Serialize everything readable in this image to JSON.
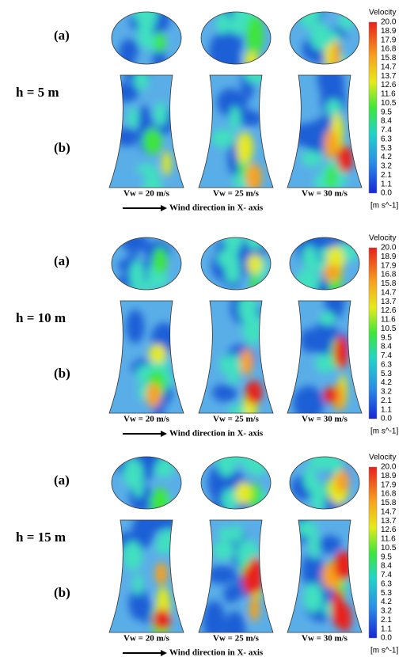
{
  "panels": [
    {
      "height_label": "h = 5 m",
      "row_a_label": "(a)",
      "row_b_label": "(b)",
      "speed_labels": [
        "Vw = 20 m/s",
        "Vw = 25 m/s",
        "Vw = 30 m/s"
      ],
      "wind_label": "Wind direction in X- axis",
      "legend": {
        "title": "Velocity",
        "ticks": [
          "20.0",
          "18.9",
          "17.9",
          "16.8",
          "15.8",
          "14.7",
          "13.7",
          "12.6",
          "11.6",
          "10.5",
          "9.5",
          "8.4",
          "7.4",
          "6.3",
          "5.3",
          "4.2",
          "3.2",
          "2.1",
          "1.1",
          "0.0"
        ],
        "unit": "[m s^-1]"
      }
    },
    {
      "height_label": "h = 10 m",
      "row_a_label": "(a)",
      "row_b_label": "(b)",
      "speed_labels": [
        "Vw = 20 m/s",
        "Vw = 25 m/s",
        "Vw = 30 m/s"
      ],
      "wind_label": "Wind direction in X- axis",
      "legend": {
        "title": "Velocity",
        "ticks": [
          "20.0",
          "18.9",
          "17.9",
          "16.8",
          "15.8",
          "14.7",
          "13.7",
          "12.6",
          "11.6",
          "10.5",
          "9.5",
          "8.4",
          "7.4",
          "6.3",
          "5.3",
          "4.2",
          "3.2",
          "2.1",
          "1.1",
          "0.0"
        ],
        "unit": "[m s^-1]"
      }
    },
    {
      "height_label": "h = 15 m",
      "row_a_label": "(a)",
      "row_b_label": "(b)",
      "speed_labels": [
        "Vw = 20 m/s",
        "Vw = 25 m/s",
        "Vw = 30 m/s"
      ],
      "wind_label": "Wind direction in X- axis",
      "legend": {
        "title": "Velocity",
        "ticks": [
          "20.0",
          "18.9",
          "17.9",
          "16.8",
          "15.8",
          "14.7",
          "13.7",
          "12.6",
          "11.6",
          "10.5",
          "9.5",
          "8.4",
          "7.4",
          "6.3",
          "5.3",
          "4.2",
          "3.2",
          "2.1",
          "1.1",
          "0.0"
        ],
        "unit": "[m s^-1]"
      }
    }
  ]
}
